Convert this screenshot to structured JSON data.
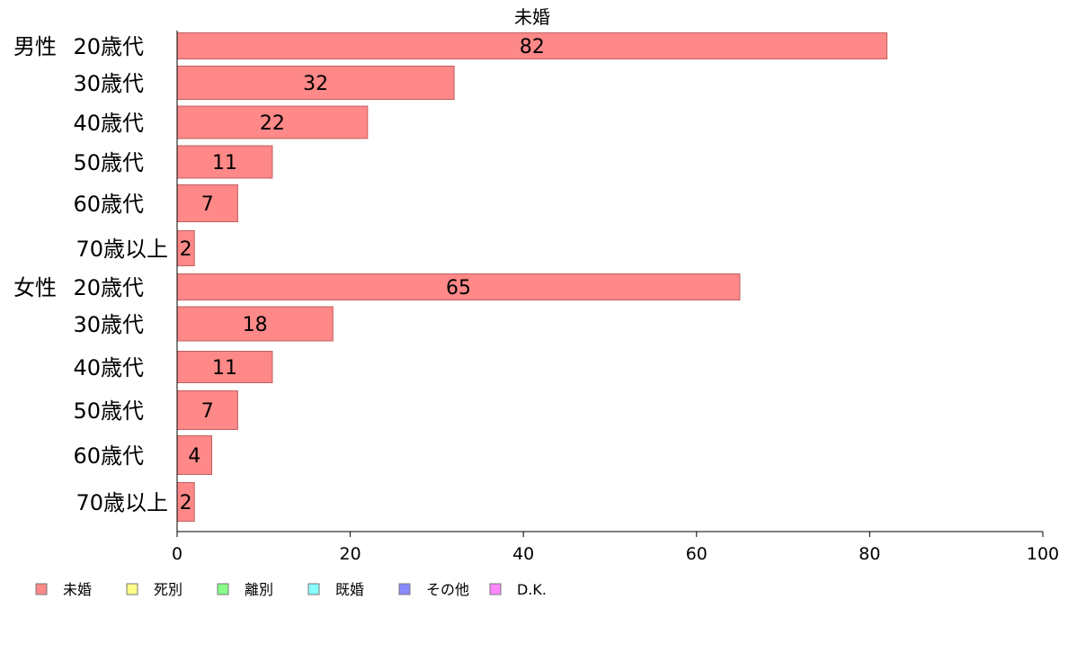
{
  "chart_data": {
    "type": "bar",
    "orientation": "horizontal",
    "title": "未婚",
    "groups": [
      {
        "label": "男性",
        "categories": [
          "20歳代",
          "30歳代",
          "40歳代",
          "50歳代",
          "60歳代",
          "70歳以上"
        ]
      },
      {
        "label": "女性",
        "categories": [
          "20歳代",
          "30歳代",
          "40歳代",
          "50歳代",
          "60歳代",
          "70歳以上"
        ]
      }
    ],
    "series": [
      {
        "name": "未婚",
        "color": "#ff8888",
        "values": [
          82,
          32,
          22,
          11,
          7,
          2,
          65,
          18,
          11,
          7,
          4,
          2
        ]
      }
    ],
    "xlim": [
      0,
      100
    ],
    "xticks": [
      "0",
      "20",
      "40",
      "60",
      "80",
      "100"
    ],
    "grid": false,
    "legend": {
      "position": "bottom-left",
      "items": [
        {
          "name": "未婚",
          "color": "#ff8888"
        },
        {
          "name": "死別",
          "color": "#ffff88"
        },
        {
          "name": "離別",
          "color": "#88ff88"
        },
        {
          "name": "既婚",
          "color": "#88ffff"
        },
        {
          "name": "その他",
          "color": "#8888ff"
        },
        {
          "name": "D.K.",
          "color": "#ff88ff"
        }
      ]
    }
  }
}
